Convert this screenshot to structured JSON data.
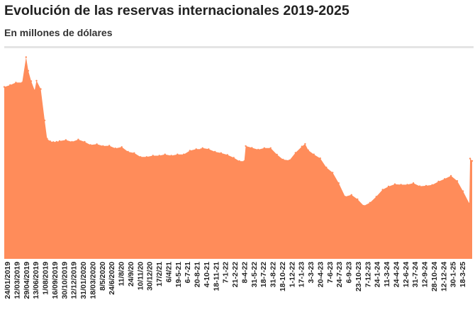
{
  "chart_data": {
    "type": "area",
    "title": "Evolución de las reservas internacionales 2019-2025",
    "subtitle": "En millones de dólares",
    "xlabel": "",
    "ylabel": "",
    "color": "#ff8c5a",
    "grid": false,
    "legend": "none",
    "ylim": [
      0,
      79000
    ],
    "x_tick_labels": [
      "24/01/2019",
      "12/03/2019",
      "29/04/2019",
      "13/06/2019",
      "1/08/2019",
      "16/09/2019",
      "30/10/2019",
      "12/12/2019",
      "31/01/2020",
      "18/03/2020",
      "8/5/2020",
      "24/6/2020",
      "11/8/20",
      "24/9/20",
      "10/11/20",
      "30/12/20",
      "17/2/21",
      "6/4/21",
      "19-5-21",
      "6-7-21",
      "20-8-21",
      "4-10-21",
      "18-11-21",
      "7-1-22",
      "21-2-22",
      "8-4-22",
      "31-5-22",
      "18-7-22",
      "31-8-22",
      "18-10-22",
      "1-12-22",
      "17-1-23",
      "3-3-23",
      "20-4-23",
      "7-6-23",
      "24-7-23",
      "6-9-23",
      "23-10-23",
      "7-12-23",
      "24-1-24",
      "11-3-24",
      "24-4-24",
      "12-6-24",
      "31-7-24",
      "12-9-24",
      "28-10-24",
      "12-12-24",
      "30-1-25",
      "18-3-25"
    ],
    "x": [
      "2019-01-03",
      "2019-02-01",
      "2019-03-01",
      "2019-04-01",
      "2019-04-20",
      "2019-05-01",
      "2019-05-15",
      "2019-06-01",
      "2019-06-10",
      "2019-07-01",
      "2019-07-20",
      "2019-08-01",
      "2019-08-16",
      "2019-09-01",
      "2019-09-16",
      "2019-10-01",
      "2019-11-01",
      "2019-12-01",
      "2020-01-01",
      "2020-02-01",
      "2020-03-01",
      "2020-04-01",
      "2020-05-01",
      "2020-06-01",
      "2020-07-01",
      "2020-08-01",
      "2020-09-01",
      "2020-10-01",
      "2020-11-01",
      "2020-12-01",
      "2021-01-01",
      "2021-02-01",
      "2021-03-01",
      "2021-04-01",
      "2021-05-01",
      "2021-06-01",
      "2021-07-01",
      "2021-08-01",
      "2021-08-25",
      "2021-09-01",
      "2021-10-01",
      "2021-11-01",
      "2021-12-01",
      "2022-01-01",
      "2022-02-01",
      "2022-03-01",
      "2022-03-25",
      "2022-04-01",
      "2022-05-01",
      "2022-06-01",
      "2022-07-01",
      "2022-08-01",
      "2022-09-01",
      "2022-10-01",
      "2022-11-01",
      "2022-12-01",
      "2023-01-01",
      "2023-01-17",
      "2023-02-01",
      "2023-03-01",
      "2023-04-01",
      "2023-05-01",
      "2023-06-01",
      "2023-07-01",
      "2023-08-01",
      "2023-09-01",
      "2023-10-01",
      "2023-11-01",
      "2023-12-01",
      "2024-01-01",
      "2024-02-01",
      "2024-03-01",
      "2024-04-01",
      "2024-05-01",
      "2024-06-01",
      "2024-07-01",
      "2024-08-01",
      "2024-09-01",
      "2024-10-01",
      "2024-11-01",
      "2024-12-01",
      "2025-01-01",
      "2025-02-01",
      "2025-03-01",
      "2025-04-01",
      "2025-04-05",
      "2025-04-15"
    ],
    "values": [
      65800,
      66500,
      67500,
      67500,
      77200,
      72000,
      68000,
      64500,
      68200,
      65000,
      53000,
      46000,
      45000,
      44700,
      44800,
      45100,
      45500,
      44800,
      45700,
      44800,
      43600,
      43900,
      43200,
      43300,
      42300,
      42800,
      41000,
      40500,
      39000,
      39000,
      39500,
      39500,
      40000,
      39500,
      40000,
      40000,
      41400,
      42000,
      42000,
      42400,
      42000,
      41000,
      40500,
      39800,
      38700,
      37400,
      37400,
      43200,
      42500,
      41800,
      42400,
      42400,
      39900,
      38000,
      37700,
      40600,
      43000,
      44000,
      41600,
      40000,
      38500,
      35000,
      33000,
      29000,
      23800,
      24500,
      22800,
      20300,
      21500,
      23800,
      26500,
      27700,
      28600,
      28400,
      28400,
      29000,
      27800,
      28000,
      28300,
      29600,
      30600,
      31800,
      29800,
      25900,
      21200,
      38400,
      37500
    ]
  }
}
